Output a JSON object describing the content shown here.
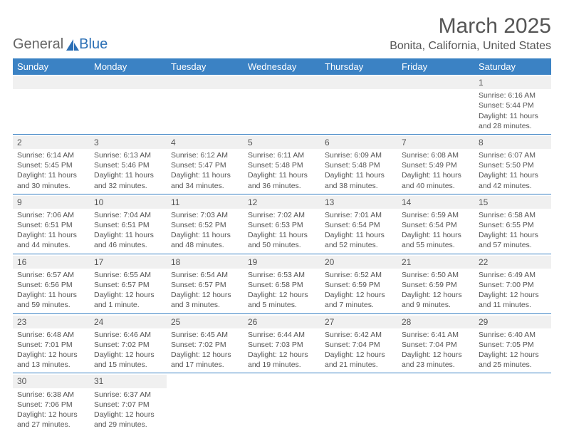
{
  "brand": {
    "part1": "General",
    "part2": "Blue"
  },
  "title": "March 2025",
  "location": "Bonita, California, United States",
  "day_names": [
    "Sunday",
    "Monday",
    "Tuesday",
    "Wednesday",
    "Thursday",
    "Friday",
    "Saturday"
  ],
  "colors": {
    "header_bg": "#3b82c4",
    "header_text": "#ffffff",
    "text": "#555555",
    "daynum_bg": "#f0f0f0",
    "row_border": "#3b82c4",
    "logo_blue": "#2b6fb5"
  },
  "weeks": [
    [
      null,
      null,
      null,
      null,
      null,
      null,
      {
        "num": "1",
        "sunrise": "Sunrise: 6:16 AM",
        "sunset": "Sunset: 5:44 PM",
        "daylight": "Daylight: 11 hours and 28 minutes."
      }
    ],
    [
      {
        "num": "2",
        "sunrise": "Sunrise: 6:14 AM",
        "sunset": "Sunset: 5:45 PM",
        "daylight": "Daylight: 11 hours and 30 minutes."
      },
      {
        "num": "3",
        "sunrise": "Sunrise: 6:13 AM",
        "sunset": "Sunset: 5:46 PM",
        "daylight": "Daylight: 11 hours and 32 minutes."
      },
      {
        "num": "4",
        "sunrise": "Sunrise: 6:12 AM",
        "sunset": "Sunset: 5:47 PM",
        "daylight": "Daylight: 11 hours and 34 minutes."
      },
      {
        "num": "5",
        "sunrise": "Sunrise: 6:11 AM",
        "sunset": "Sunset: 5:48 PM",
        "daylight": "Daylight: 11 hours and 36 minutes."
      },
      {
        "num": "6",
        "sunrise": "Sunrise: 6:09 AM",
        "sunset": "Sunset: 5:48 PM",
        "daylight": "Daylight: 11 hours and 38 minutes."
      },
      {
        "num": "7",
        "sunrise": "Sunrise: 6:08 AM",
        "sunset": "Sunset: 5:49 PM",
        "daylight": "Daylight: 11 hours and 40 minutes."
      },
      {
        "num": "8",
        "sunrise": "Sunrise: 6:07 AM",
        "sunset": "Sunset: 5:50 PM",
        "daylight": "Daylight: 11 hours and 42 minutes."
      }
    ],
    [
      {
        "num": "9",
        "sunrise": "Sunrise: 7:06 AM",
        "sunset": "Sunset: 6:51 PM",
        "daylight": "Daylight: 11 hours and 44 minutes."
      },
      {
        "num": "10",
        "sunrise": "Sunrise: 7:04 AM",
        "sunset": "Sunset: 6:51 PM",
        "daylight": "Daylight: 11 hours and 46 minutes."
      },
      {
        "num": "11",
        "sunrise": "Sunrise: 7:03 AM",
        "sunset": "Sunset: 6:52 PM",
        "daylight": "Daylight: 11 hours and 48 minutes."
      },
      {
        "num": "12",
        "sunrise": "Sunrise: 7:02 AM",
        "sunset": "Sunset: 6:53 PM",
        "daylight": "Daylight: 11 hours and 50 minutes."
      },
      {
        "num": "13",
        "sunrise": "Sunrise: 7:01 AM",
        "sunset": "Sunset: 6:54 PM",
        "daylight": "Daylight: 11 hours and 52 minutes."
      },
      {
        "num": "14",
        "sunrise": "Sunrise: 6:59 AM",
        "sunset": "Sunset: 6:54 PM",
        "daylight": "Daylight: 11 hours and 55 minutes."
      },
      {
        "num": "15",
        "sunrise": "Sunrise: 6:58 AM",
        "sunset": "Sunset: 6:55 PM",
        "daylight": "Daylight: 11 hours and 57 minutes."
      }
    ],
    [
      {
        "num": "16",
        "sunrise": "Sunrise: 6:57 AM",
        "sunset": "Sunset: 6:56 PM",
        "daylight": "Daylight: 11 hours and 59 minutes."
      },
      {
        "num": "17",
        "sunrise": "Sunrise: 6:55 AM",
        "sunset": "Sunset: 6:57 PM",
        "daylight": "Daylight: 12 hours and 1 minute."
      },
      {
        "num": "18",
        "sunrise": "Sunrise: 6:54 AM",
        "sunset": "Sunset: 6:57 PM",
        "daylight": "Daylight: 12 hours and 3 minutes."
      },
      {
        "num": "19",
        "sunrise": "Sunrise: 6:53 AM",
        "sunset": "Sunset: 6:58 PM",
        "daylight": "Daylight: 12 hours and 5 minutes."
      },
      {
        "num": "20",
        "sunrise": "Sunrise: 6:52 AM",
        "sunset": "Sunset: 6:59 PM",
        "daylight": "Daylight: 12 hours and 7 minutes."
      },
      {
        "num": "21",
        "sunrise": "Sunrise: 6:50 AM",
        "sunset": "Sunset: 6:59 PM",
        "daylight": "Daylight: 12 hours and 9 minutes."
      },
      {
        "num": "22",
        "sunrise": "Sunrise: 6:49 AM",
        "sunset": "Sunset: 7:00 PM",
        "daylight": "Daylight: 12 hours and 11 minutes."
      }
    ],
    [
      {
        "num": "23",
        "sunrise": "Sunrise: 6:48 AM",
        "sunset": "Sunset: 7:01 PM",
        "daylight": "Daylight: 12 hours and 13 minutes."
      },
      {
        "num": "24",
        "sunrise": "Sunrise: 6:46 AM",
        "sunset": "Sunset: 7:02 PM",
        "daylight": "Daylight: 12 hours and 15 minutes."
      },
      {
        "num": "25",
        "sunrise": "Sunrise: 6:45 AM",
        "sunset": "Sunset: 7:02 PM",
        "daylight": "Daylight: 12 hours and 17 minutes."
      },
      {
        "num": "26",
        "sunrise": "Sunrise: 6:44 AM",
        "sunset": "Sunset: 7:03 PM",
        "daylight": "Daylight: 12 hours and 19 minutes."
      },
      {
        "num": "27",
        "sunrise": "Sunrise: 6:42 AM",
        "sunset": "Sunset: 7:04 PM",
        "daylight": "Daylight: 12 hours and 21 minutes."
      },
      {
        "num": "28",
        "sunrise": "Sunrise: 6:41 AM",
        "sunset": "Sunset: 7:04 PM",
        "daylight": "Daylight: 12 hours and 23 minutes."
      },
      {
        "num": "29",
        "sunrise": "Sunrise: 6:40 AM",
        "sunset": "Sunset: 7:05 PM",
        "daylight": "Daylight: 12 hours and 25 minutes."
      }
    ],
    [
      {
        "num": "30",
        "sunrise": "Sunrise: 6:38 AM",
        "sunset": "Sunset: 7:06 PM",
        "daylight": "Daylight: 12 hours and 27 minutes."
      },
      {
        "num": "31",
        "sunrise": "Sunrise: 6:37 AM",
        "sunset": "Sunset: 7:07 PM",
        "daylight": "Daylight: 12 hours and 29 minutes."
      },
      null,
      null,
      null,
      null,
      null
    ]
  ]
}
